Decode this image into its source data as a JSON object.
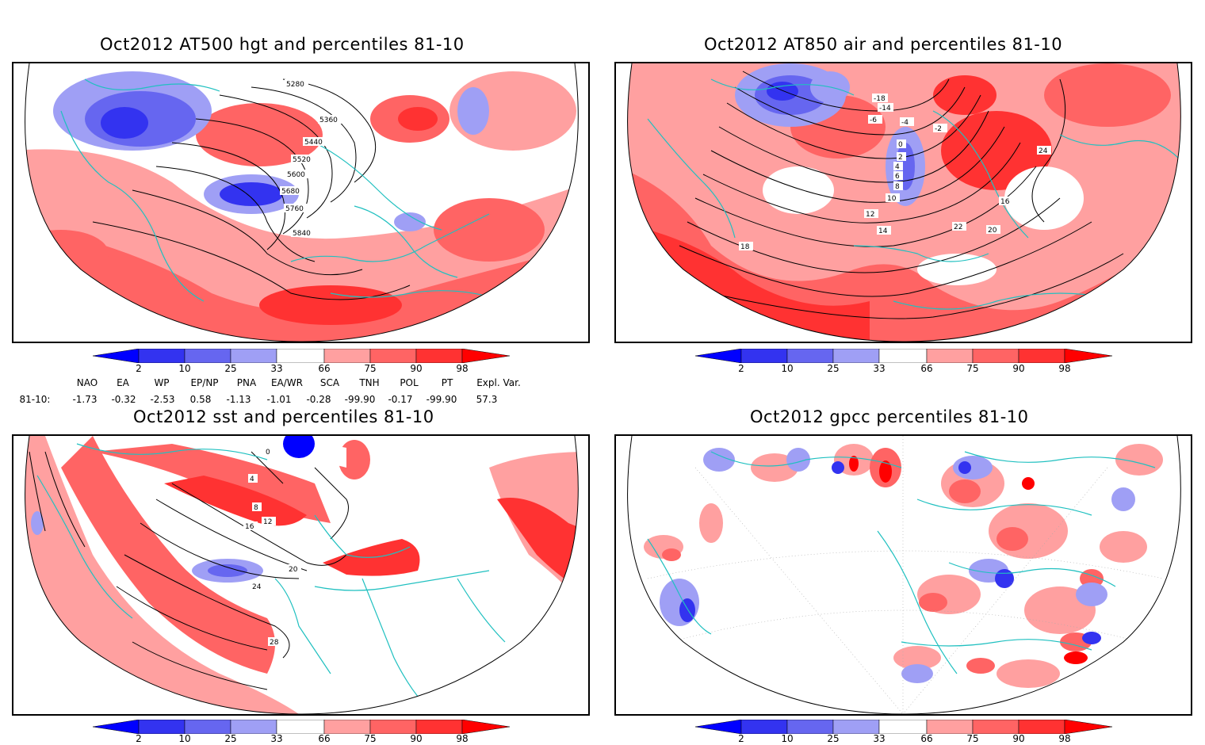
{
  "panels": [
    {
      "id": "hgt500",
      "title": "Oct2012 AT500 hgt and percentiles 81-10",
      "contour_labels": [
        "5280",
        "5360",
        "5440",
        "5520",
        "5600",
        "5680",
        "5760",
        "5840"
      ]
    },
    {
      "id": "air850",
      "title": "Oct2012 AT850 air and percentiles 81-10",
      "contour_labels": [
        "-18",
        "-14",
        "-6",
        "-4",
        "-2",
        "0",
        "2",
        "4",
        "6",
        "8",
        "10",
        "12",
        "14",
        "16",
        "18",
        "20",
        "22",
        "24"
      ]
    },
    {
      "id": "sst",
      "title": "Oct2012 sst and percentiles 81-10",
      "contour_labels": [
        "0",
        "4",
        "8",
        "12",
        "16",
        "20",
        "24",
        "28"
      ]
    },
    {
      "id": "gpcc",
      "title": "Oct2012 gpcc percentiles 81-10",
      "contour_labels": []
    }
  ],
  "colorbar": {
    "labels": [
      "2",
      "10",
      "25",
      "33",
      "66",
      "75",
      "90",
      "98"
    ],
    "colors": [
      "#0000ff",
      "#3333f0",
      "#6666f0",
      "#9f9ff5",
      "#ffffff",
      "#ffa0a0",
      "#ff6464",
      "#ff3232",
      "#ff0000"
    ]
  },
  "teleconnections": {
    "row_label": "81-10:",
    "names": [
      "NAO",
      "EA",
      "WP",
      "EP/NP",
      "PNA",
      "EA/WR",
      "SCA",
      "TNH",
      "POL",
      "PT",
      "Expl. Var."
    ],
    "values": [
      "-1.73",
      "-0.32",
      "-2.53",
      "0.58",
      "-1.13",
      "-1.01",
      "-0.28",
      "-99.90",
      "-0.17",
      "-99.90",
      "57.3"
    ]
  }
}
